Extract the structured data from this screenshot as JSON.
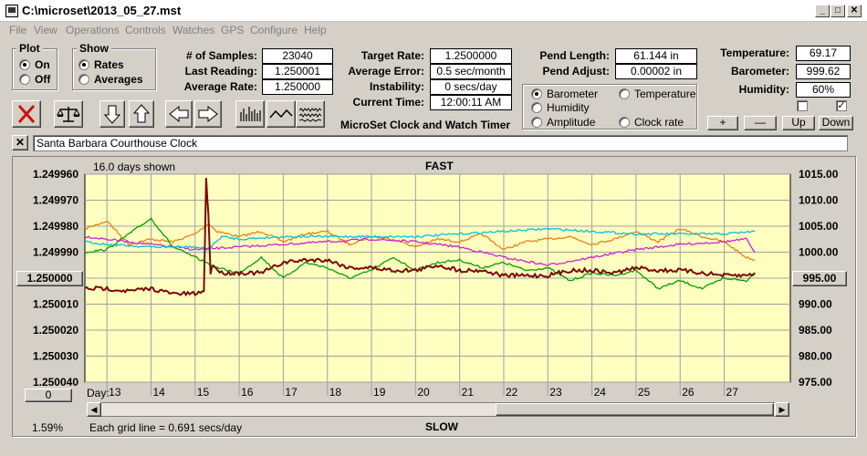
{
  "window": {
    "title": "C:\\microset\\2013_05_27.mst"
  },
  "menu": [
    "File",
    "View",
    "Operations",
    "Controls",
    "Watches",
    "GPS",
    "Configure",
    "Help"
  ],
  "plot_group": {
    "title": "Plot",
    "options": [
      "On",
      "Off"
    ],
    "selected": "On"
  },
  "show_group": {
    "title": "Show",
    "options": [
      "Rates",
      "Averages"
    ],
    "selected": "Rates"
  },
  "stats": {
    "samples_label": "# of Samples:",
    "samples": "23040",
    "last_label": "Last Reading:",
    "last": "1.250001",
    "avg_rate_label": "Average Rate:",
    "avg_rate": "1.250000",
    "target_label": "Target Rate:",
    "target": "1.2500000",
    "avg_err_label": "Average Error:",
    "avg_err": "0.5 sec/month",
    "instab_label": "Instability:",
    "instab": "0 secs/day",
    "time_label": "Current Time:",
    "time": "12:00:11 AM",
    "pend_len_label": "Pend Length:",
    "pend_len": "61.144 in",
    "pend_adj_label": "Pend Adjust:",
    "pend_adj": "0.00002 in",
    "temp_label": "Temperature:",
    "temp": "69.17",
    "baro_label": "Barometer:",
    "baro": "999.62",
    "hum_label": "Humidity:",
    "hum": "60%"
  },
  "app_label": "MicroSet Clock and Watch Timer",
  "aux_channels": [
    {
      "name": "Barometer",
      "color": "#e8801a",
      "selected": true
    },
    {
      "name": "Temperature",
      "color": "#00a000",
      "selected": false
    },
    {
      "name": "Humidity",
      "color": "#d020d0",
      "selected": false
    },
    {
      "name": "Amplitude",
      "color": "#00c0e0",
      "selected": false
    },
    {
      "name": "Clock rate",
      "color": "#000000",
      "selected": false
    }
  ],
  "aux_buttons": {
    "plus": "+",
    "minus": "—",
    "up": "Up",
    "down": "Down"
  },
  "toolbar_icons": [
    "stop-icon",
    "balance-scale-icon",
    "arrow-down-icon",
    "arrow-up-icon",
    "arrow-left-icon",
    "arrow-right-icon",
    "bar-graph-icon",
    "line-wave-icon",
    "noise-wave-icon"
  ],
  "clock_name": "Santa Barbara Courthouse Clock",
  "graph": {
    "days_shown": "16.0 days shown",
    "top_label": "FAST",
    "bottom_label": "SLOW",
    "grid_note": "Each grid line = 0.691 secs/day",
    "percent": "1.59%",
    "left_button": "1.250000",
    "right_button": "995.00",
    "zero_button": "0",
    "day_label": "Day:"
  },
  "chart_data": {
    "type": "line",
    "x": [
      13,
      14,
      15,
      16,
      17,
      18,
      19,
      20,
      21,
      22,
      23,
      24,
      25,
      26,
      27
    ],
    "x_ticks": [
      "13",
      "14",
      "15",
      "16",
      "17",
      "18",
      "19",
      "20",
      "21",
      "22",
      "23",
      "24",
      "25",
      "26",
      "27"
    ],
    "xlim": [
      12.5,
      28.5
    ],
    "y_left_ticks": [
      "1.249960",
      "1.249970",
      "1.249980",
      "1.249990",
      "1.250000",
      "1.250010",
      "1.250020",
      "1.250030",
      "1.250040"
    ],
    "y_right_ticks": [
      "1015.00",
      "1010.00",
      "1005.00",
      "1000.00",
      "995.00",
      "990.00",
      "985.00",
      "980.00",
      "975.00"
    ],
    "ylim_left": [
      1.24996,
      1.25004
    ],
    "ylim_right": [
      975,
      1015
    ],
    "series": [
      {
        "name": "Barometer",
        "color": "#e8801a",
        "x": [
          12.5,
          13,
          13.5,
          14,
          14.5,
          15,
          15.3,
          15.5,
          16,
          16.5,
          17,
          17.5,
          18,
          18.5,
          19,
          19.5,
          20,
          20.5,
          21,
          21.5,
          22,
          22.5,
          23,
          23.5,
          24,
          24.5,
          25,
          25.5,
          26,
          26.5,
          27,
          27.5,
          27.7
        ],
        "values": [
          1004.5,
          1006,
          1001.5,
          1002.5,
          1002,
          1003.5,
          1005.5,
          1004,
          1003,
          1004,
          1002,
          1003.5,
          1004,
          1001.5,
          1003,
          1002.5,
          1001,
          1002.5,
          1002,
          1003.5,
          1000.5,
          1002,
          1002.5,
          1003,
          1001.5,
          1002.5,
          1004,
          1002,
          1004.5,
          1003,
          1002,
          999,
          998.5
        ]
      },
      {
        "name": "Temperature",
        "color": "#00a000",
        "x": [
          12.5,
          13,
          13.5,
          14,
          14.5,
          15,
          15.5,
          16,
          16.5,
          17,
          17.5,
          18,
          18.5,
          19,
          19.5,
          20,
          20.5,
          21,
          21.5,
          22,
          22.5,
          23,
          23.5,
          24,
          24.5,
          25,
          25.5,
          26,
          26.5,
          27,
          27.5,
          27.7
        ],
        "values": [
          1000,
          1000.5,
          1003.5,
          1006.5,
          1001,
          999,
          997,
          996,
          999,
          995,
          998,
          997,
          995,
          996.5,
          999,
          996.5,
          998,
          998.5,
          997,
          998,
          996.5,
          997,
          994.5,
          996,
          995.5,
          996.5,
          993,
          994.5,
          993,
          995,
          994.5,
          996
        ]
      },
      {
        "name": "Humidity",
        "color": "#d020d0",
        "x": [
          12.5,
          13,
          14,
          15,
          16,
          17,
          18,
          19,
          20,
          21,
          22,
          23,
          24,
          25,
          26,
          27,
          27.5,
          27.7
        ],
        "values": [
          1003,
          1002.5,
          1001.5,
          1000.5,
          1001,
          1001.5,
          1002,
          1002.5,
          1002,
          1001,
          999,
          997.5,
          999,
          1000.5,
          1001.5,
          1002,
          1002.5,
          1000
        ]
      },
      {
        "name": "Amplitude",
        "color": "#00c0e0",
        "x": [
          12.5,
          13,
          14,
          15,
          15.3,
          15.6,
          16,
          17,
          18,
          19,
          20,
          21,
          22,
          23,
          24,
          25,
          26,
          27,
          27.7
        ],
        "values": [
          1002,
          1001.5,
          1001,
          1001,
          1000.5,
          1003,
          1002.5,
          1003,
          1003,
          1003,
          1003,
          1003.5,
          1004,
          1004.5,
          1004,
          1003.5,
          1003.5,
          1003.5,
          1004
        ]
      },
      {
        "name": "Clock rate",
        "color": "#7a0a0a",
        "x": [
          12.5,
          13,
          13.5,
          14,
          14.5,
          15,
          15.2,
          15.25,
          15.3,
          15.35,
          15.4,
          15.6,
          16,
          16.5,
          17,
          17.5,
          18,
          18.5,
          19,
          19.5,
          20,
          20.5,
          21,
          21.5,
          22,
          22.5,
          23,
          23.5,
          24,
          24.5,
          25,
          25.5,
          26,
          26.5,
          27,
          27.5,
          27.7
        ],
        "values": [
          1.250004,
          1.250004,
          1.250005,
          1.250004,
          1.250006,
          1.250006,
          1.250005,
          1.249962,
          1.249975,
          1.249998,
          1.249995,
          1.249998,
          1.249998,
          1.249998,
          1.249994,
          1.249993,
          1.249993,
          1.249996,
          1.249996,
          1.249997,
          1.249997,
          1.249995,
          1.249997,
          1.249997,
          1.249999,
          1.249999,
          1.249999,
          1.249997,
          1.249997,
          1.249998,
          1.249996,
          1.249997,
          1.249997,
          1.249998,
          1.249999,
          1.249999,
          1.249998
        ]
      }
    ]
  }
}
